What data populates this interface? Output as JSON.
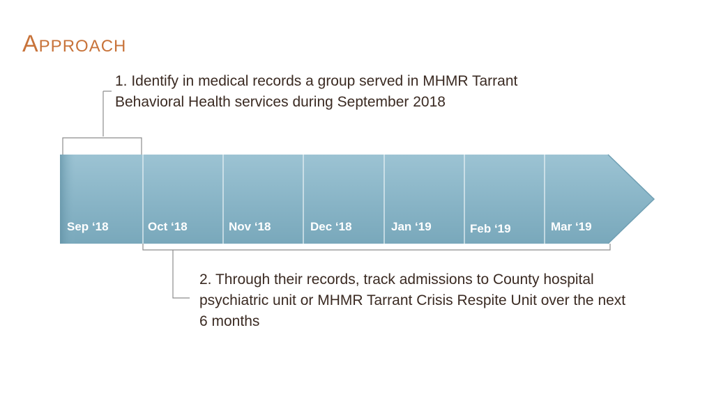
{
  "title": "Approach",
  "step1": {
    "lines": [
      "1. Identify in medical records a group served in MHMR Tarrant",
      "Behavioral Health services during September 2018"
    ]
  },
  "step2": {
    "lines": [
      "2. Through their records, track admissions to County hospital",
      "psychiatric unit or MHMR Tarrant Crisis Respite Unit over the next",
      "6 months"
    ]
  },
  "timeline": {
    "months": [
      "Sep ‘18",
      "Oct ‘18",
      "Nov ‘18",
      "Dec ‘18",
      "Jan ‘19",
      "Feb ‘19",
      "Mar ‘19"
    ]
  },
  "colors": {
    "title": "#c8733a",
    "arrow_fill": "#88b4c6",
    "arrow_dark": "#6f9fb3",
    "bracket": "#8c8c8c",
    "text": "#3a2a22"
  }
}
